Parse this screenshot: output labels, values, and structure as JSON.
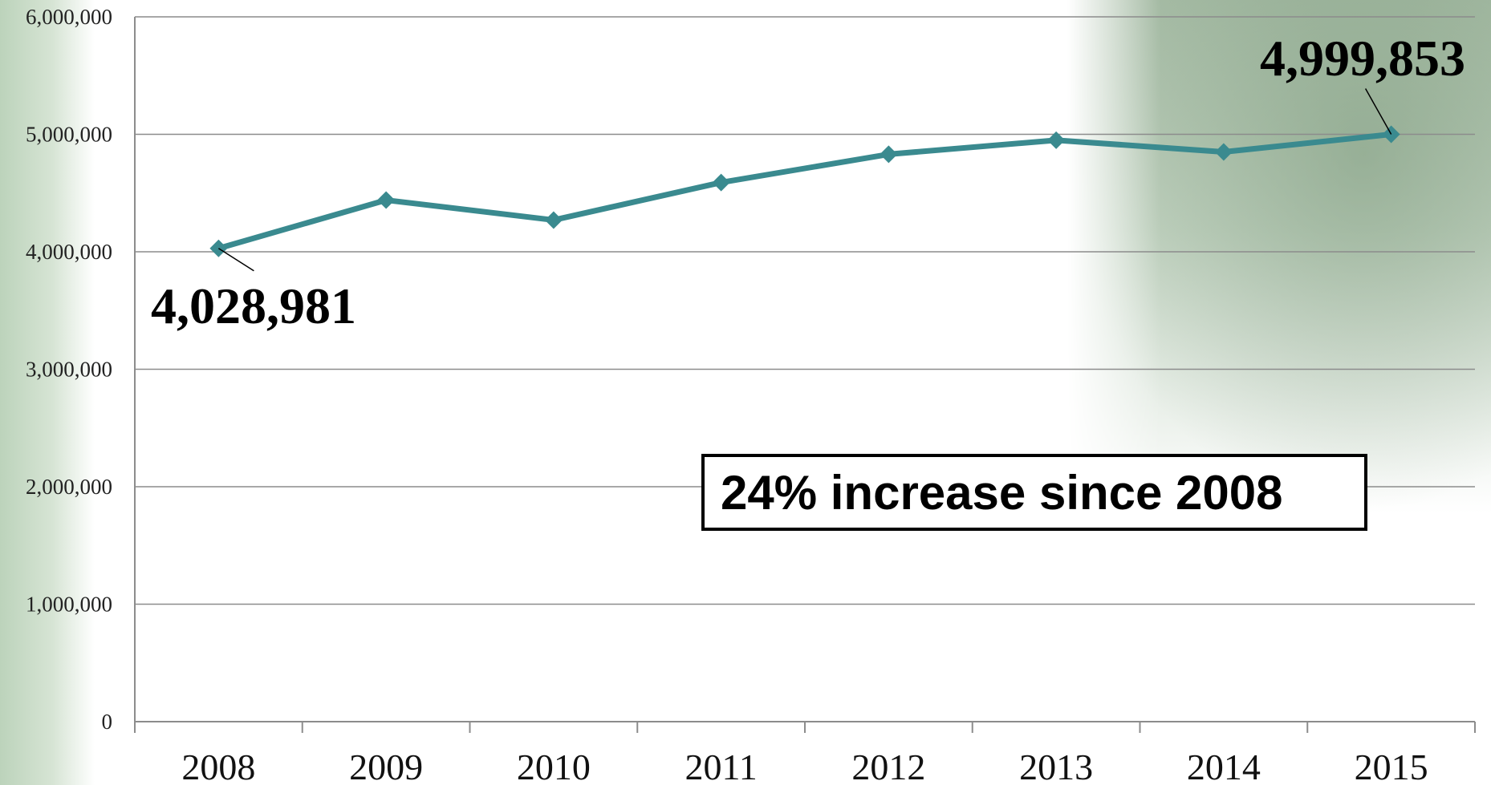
{
  "chart_data": {
    "type": "line",
    "title": "",
    "xlabel": "",
    "ylabel": "",
    "categories": [
      "2008",
      "2009",
      "2010",
      "2011",
      "2012",
      "2013",
      "2014",
      "2015"
    ],
    "series": [
      {
        "values": [
          4028981,
          4440000,
          4270000,
          4590000,
          4830000,
          4950000,
          4850000,
          4999853
        ]
      }
    ],
    "ylim": [
      0,
      6000000
    ],
    "yticks": [
      0,
      1000000,
      2000000,
      3000000,
      4000000,
      5000000,
      6000000
    ],
    "ytick_labels": [
      "0",
      "1,000,000",
      "2,000,000",
      "3,000,000",
      "4,000,000",
      "5,000,000",
      "6,000,000"
    ],
    "grid": true,
    "legend": "none",
    "line_color": "#3a8a8f",
    "annotations": [
      {
        "label": "4,028,981",
        "category": "2008"
      },
      {
        "label": "4,999,853",
        "category": "2015"
      }
    ],
    "note": "24% increase since 2008"
  }
}
